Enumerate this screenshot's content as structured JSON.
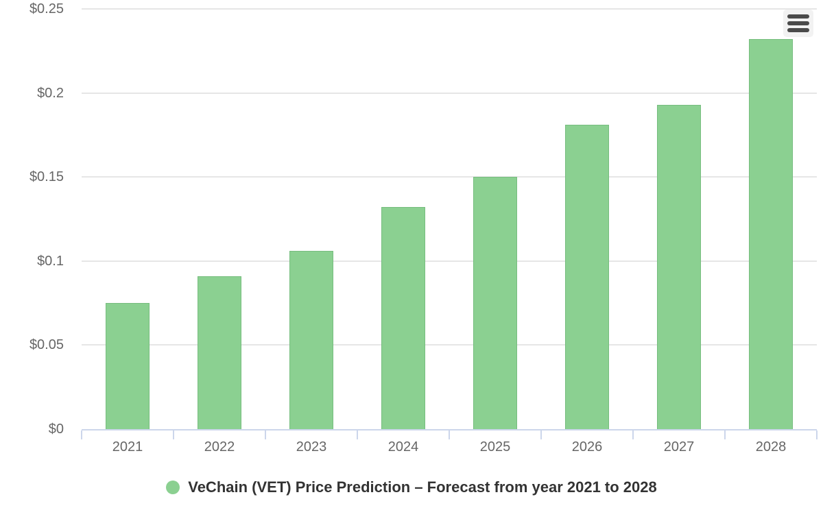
{
  "chart_data": {
    "type": "bar",
    "title": "",
    "xlabel": "",
    "ylabel": "",
    "categories": [
      "2021",
      "2022",
      "2023",
      "2024",
      "2025",
      "2026",
      "2027",
      "2028"
    ],
    "values": [
      0.075,
      0.091,
      0.106,
      0.132,
      0.15,
      0.181,
      0.193,
      0.232
    ],
    "series_name": "VeChain (VET) Price Prediction – Forecast from year 2021 to 2028",
    "ylim": [
      0,
      0.25
    ],
    "ytick_step": 0.05,
    "ytick_labels": [
      "$0",
      "$0.05",
      "$0.1",
      "$0.15",
      "$0.2",
      "$0.25"
    ],
    "grid": true,
    "legend_position": "bottom",
    "colors": {
      "bar_fill": "#8BD091",
      "bar_border": "#76BD7E",
      "gridline": "#e6e6e6",
      "axis": "#ccd6eb",
      "axis_label": "#666666",
      "legend_text": "#333333"
    }
  },
  "icons": {
    "export_menu": "hamburger-menu"
  }
}
